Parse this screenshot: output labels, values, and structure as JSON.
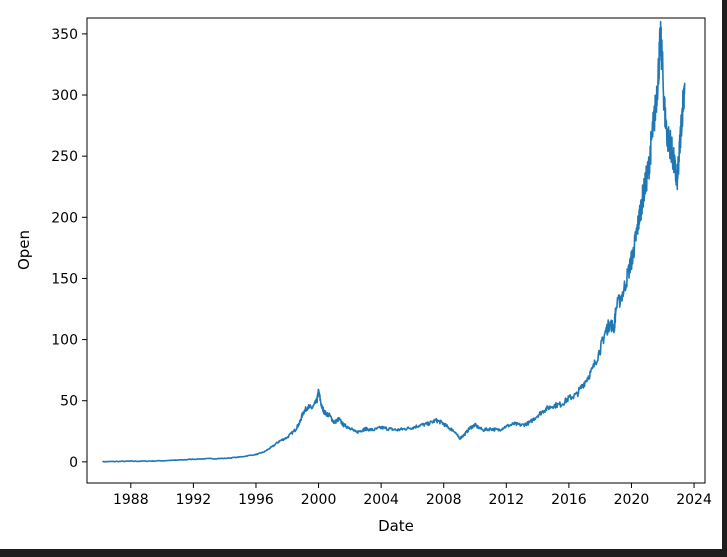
{
  "chart_data": {
    "type": "line",
    "title": "",
    "xlabel": "Date",
    "ylabel": "Open",
    "xlim": [
      1985.2,
      2024.7
    ],
    "ylim": [
      -17.3,
      363
    ],
    "x_ticks": [
      1988,
      1992,
      1996,
      2000,
      2004,
      2008,
      2012,
      2016,
      2020,
      2024
    ],
    "x_tick_labels": [
      "1988",
      "1992",
      "1996",
      "2000",
      "2004",
      "2008",
      "2012",
      "2016",
      "2020",
      "2024"
    ],
    "y_ticks": [
      0,
      50,
      100,
      150,
      200,
      250,
      300,
      350
    ],
    "y_tick_labels": [
      "0",
      "50",
      "100",
      "150",
      "200",
      "250",
      "300",
      "350"
    ],
    "grid": false,
    "line_color": "#1f77b4",
    "series": [
      {
        "x": [
          1986.2,
          1987,
          1988,
          1989,
          1990,
          1991,
          1992,
          1993,
          1994,
          1995,
          1996,
          1996.5,
          1997,
          1997.5,
          1998,
          1998.5,
          1998.8,
          1999,
          1999.3,
          1999.6,
          1999.9,
          2000,
          2000.2,
          2000.4,
          2000.7,
          2001,
          2001.3,
          2001.6,
          2002,
          2002.4,
          2002.8,
          2003,
          2003.5,
          2004,
          2004.5,
          2005,
          2005.5,
          2006,
          2006.5,
          2007,
          2007.5,
          2007.9,
          2008.3,
          2008.7,
          2009,
          2009.3,
          2009.7,
          2010,
          2010.5,
          2011,
          2011.5,
          2012,
          2012.5,
          2013,
          2013.5,
          2014,
          2014.5,
          2015,
          2015.5,
          2016,
          2016.5,
          2017,
          2017.5,
          2018,
          2018.3,
          2018.6,
          2018.9,
          2019,
          2019.5,
          2019.9,
          2020.1,
          2020.3,
          2020.5,
          2020.7,
          2020.9,
          2021.1,
          2021.3,
          2021.5,
          2021.7,
          2021.85,
          2021.95,
          2022.1,
          2022.3,
          2022.5,
          2022.7,
          2022.9,
          2023,
          2023.2,
          2023.4
        ],
        "y": [
          0.1,
          0.3,
          0.5,
          0.6,
          0.9,
          1.4,
          2.2,
          2.6,
          2.8,
          4.0,
          6.0,
          8.0,
          12,
          17,
          20,
          26,
          32,
          40,
          45,
          44,
          50,
          58,
          45,
          40,
          38,
          32,
          35,
          30,
          28,
          24,
          26,
          27,
          26,
          28,
          27,
          26,
          27,
          28,
          30,
          31,
          34,
          32,
          28,
          25,
          19,
          22,
          28,
          30,
          26,
          27,
          26,
          29,
          31,
          30,
          32,
          38,
          43,
          46,
          47,
          52,
          55,
          65,
          75,
          92,
          105,
          113,
          110,
          125,
          140,
          160,
          170,
          185,
          200,
          215,
          228,
          240,
          265,
          285,
          315,
          345,
          332,
          290,
          265,
          260,
          245,
          230,
          240,
          280,
          310
        ]
      }
    ]
  }
}
